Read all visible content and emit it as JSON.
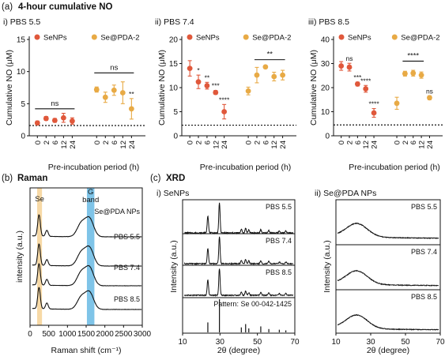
{
  "figure": {
    "panel_a_label": "(a)",
    "panel_a_title": "4-hour cumulative NO",
    "panel_b_label": "(b)",
    "panel_b_title": "Raman",
    "panel_c_label": "(c)",
    "panel_c_title": "XRD"
  },
  "colors": {
    "senps": "#e0583b",
    "sepda": "#e8aa45",
    "se_band": "#f7d9a6",
    "g_band": "#7fc4e8"
  },
  "chart_data": [
    {
      "type": "scatter",
      "title": "i) PBS 5.5",
      "ylabel": "Cumulative NO (μM)",
      "xlabel": "Pre-incubation period (h)",
      "ylim": [
        0,
        15
      ],
      "yticks": [
        0,
        5,
        10,
        15
      ],
      "baseline": 1.6,
      "x_ticklabels": [
        "0",
        "2",
        "6",
        "12",
        "24"
      ],
      "legend": [
        "SeNPs",
        "Se@PDA-2"
      ],
      "series": [
        {
          "name": "SeNPs",
          "values": [
            2.0,
            2.7,
            2.4,
            2.8,
            2.3
          ],
          "errors": [
            0.3,
            0.3,
            0.3,
            0.7,
            0.5
          ],
          "stars": [
            "",
            "",
            "",
            "",
            ""
          ]
        },
        {
          "name": "Se@PDA-2",
          "values": [
            7.2,
            6.0,
            7.1,
            6.7,
            4.2
          ],
          "errors": [
            0.4,
            0.8,
            0.8,
            1.7,
            1.6
          ],
          "stars": [
            "",
            "",
            "",
            "",
            "**"
          ]
        }
      ],
      "brackets": [
        {
          "series": 0,
          "from": 0,
          "to": 4,
          "y": 4.2,
          "label": "ns"
        },
        {
          "series": 1,
          "from": 0,
          "to": 4,
          "y": 9.8,
          "label": "ns"
        }
      ]
    },
    {
      "type": "scatter",
      "title": "ii) PBS 7.4",
      "ylabel": "Cumulative NO (μM)",
      "xlabel": "Pre-incubation period (h)",
      "ylim": [
        0,
        20
      ],
      "yticks": [
        0,
        5,
        10,
        15,
        20
      ],
      "baseline": 2.2,
      "x_ticklabels": [
        "0",
        "2",
        "6",
        "12",
        "24"
      ],
      "legend": [
        "SeNPs",
        "Se@PDA-2"
      ],
      "series": [
        {
          "name": "SeNPs",
          "values": [
            14.0,
            11.2,
            10.4,
            9.0,
            5.0
          ],
          "errors": [
            1.6,
            1.4,
            0.7,
            0.4,
            1.5
          ],
          "stars": [
            "",
            "*",
            "**",
            "***",
            "****"
          ]
        },
        {
          "name": "Se@PDA-2",
          "values": [
            9.3,
            12.6,
            14.3,
            12.3,
            12.6
          ],
          "errors": [
            0.8,
            1.6,
            0.3,
            0.9,
            1.0
          ],
          "stars": [
            "",
            "",
            "",
            "",
            ""
          ]
        }
      ],
      "brackets": [
        {
          "series": 1,
          "from": 1,
          "to": 4,
          "y": 15.8,
          "label": "**"
        }
      ]
    },
    {
      "type": "scatter",
      "title": "iii) PBS 8.5",
      "ylabel": "Cumulative NO (μM)",
      "xlabel": "Pre-incubation period (h)",
      "ylim": [
        0,
        40
      ],
      "yticks": [
        0,
        10,
        20,
        30,
        40
      ],
      "baseline": 4.5,
      "x_ticklabels": [
        "0",
        "2",
        "6",
        "12",
        "24"
      ],
      "legend": [
        "SeNPs",
        "Se@PDA-2"
      ],
      "series": [
        {
          "name": "SeNPs",
          "values": [
            29.0,
            28.5,
            21.5,
            19.5,
            9.5
          ],
          "errors": [
            1.8,
            1.6,
            0.8,
            1.4,
            1.8
          ],
          "stars": [
            "",
            "ns",
            "***",
            "****",
            "****"
          ]
        },
        {
          "name": "Se@PDA-2",
          "values": [
            13.5,
            25.8,
            26.0,
            25.2,
            15.8
          ],
          "errors": [
            2.5,
            1.0,
            1.2,
            1.3,
            0.8
          ],
          "stars": [
            "",
            "",
            "",
            "",
            "ns"
          ]
        }
      ],
      "brackets": [
        {
          "series": 1,
          "from": 1,
          "to": 3,
          "y": 31.0,
          "label": "****"
        }
      ]
    },
    {
      "type": "line",
      "title": "Raman",
      "xlabel": "Raman shift (cm⁻¹)",
      "ylabel": "intensity (a.u.)",
      "xlim": [
        0,
        3000
      ],
      "xticks": [
        0,
        500,
        1000,
        1500,
        2000,
        2500,
        3000
      ],
      "bands": [
        {
          "label": "Se",
          "from": 190,
          "to": 320
        },
        {
          "label": "G band",
          "from": 1520,
          "to": 1720
        }
      ],
      "series": [
        {
          "name": "Se@PDA NPs",
          "peaks": [
            [
              240,
              0.9
            ],
            [
              450,
              0.25
            ],
            [
              1370,
              0.55
            ],
            [
              1590,
              0.75
            ]
          ]
        },
        {
          "name": "PBS 5.5",
          "peaks": [
            [
              240,
              0.9
            ],
            [
              450,
              0.25
            ],
            [
              1370,
              0.55
            ],
            [
              1590,
              0.75
            ]
          ]
        },
        {
          "name": "PBS 7.4",
          "peaks": [
            [
              240,
              0.9
            ],
            [
              450,
              0.25
            ],
            [
              1370,
              0.55
            ],
            [
              1590,
              0.75
            ]
          ]
        },
        {
          "name": "PBS 8.5",
          "peaks": [
            [
              240,
              0.9
            ],
            [
              450,
              0.25
            ],
            [
              1370,
              0.5
            ],
            [
              1590,
              0.7
            ]
          ]
        }
      ]
    },
    {
      "type": "line",
      "title": "i) SeNPs",
      "xlabel": "2θ (degree)",
      "ylabel": "Intensity (a.u.)",
      "xlim": [
        10,
        70
      ],
      "xticks": [
        10,
        30,
        50,
        70
      ],
      "series": [
        {
          "name": "PBS 5.5",
          "peaks": [
            [
              23.5,
              0.55
            ],
            [
              29.7,
              0.95
            ],
            [
              41.4,
              0.12
            ],
            [
              43.7,
              0.15
            ],
            [
              45.4,
              0.1
            ],
            [
              51.8,
              0.1
            ],
            [
              56.1,
              0.08
            ],
            [
              61.7,
              0.06
            ],
            [
              65.2,
              0.06
            ]
          ]
        },
        {
          "name": "PBS 7.4",
          "peaks": [
            [
              23.5,
              0.55
            ],
            [
              29.7,
              0.95
            ],
            [
              41.4,
              0.12
            ],
            [
              43.7,
              0.15
            ],
            [
              45.4,
              0.1
            ],
            [
              51.8,
              0.1
            ],
            [
              56.1,
              0.08
            ],
            [
              61.7,
              0.06
            ],
            [
              65.2,
              0.06
            ]
          ]
        },
        {
          "name": "PBS 8.5",
          "peaks": [
            [
              23.5,
              0.55
            ],
            [
              29.7,
              0.95
            ],
            [
              41.4,
              0.12
            ],
            [
              43.7,
              0.15
            ],
            [
              45.4,
              0.1
            ],
            [
              51.8,
              0.1
            ],
            [
              56.1,
              0.08
            ],
            [
              61.7,
              0.06
            ],
            [
              65.2,
              0.06
            ]
          ]
        }
      ],
      "reference": {
        "name": "Pattern: Se 00-042-1425",
        "sticks": [
          [
            23.5,
            0.3
          ],
          [
            29.7,
            1.0
          ],
          [
            41.4,
            0.15
          ],
          [
            43.7,
            0.25
          ],
          [
            45.4,
            0.12
          ],
          [
            51.8,
            0.18
          ],
          [
            56.1,
            0.1
          ],
          [
            61.7,
            0.08
          ],
          [
            65.2,
            0.06
          ]
        ]
      }
    },
    {
      "type": "line",
      "title": "ii) Se@PDA NPs",
      "xlabel": "2θ (degree)",
      "ylabel": "Intensity (a.u.)",
      "xlim": [
        10,
        70
      ],
      "xticks": [
        10,
        30,
        50,
        70
      ],
      "series": [
        {
          "name": "PBS 5.5",
          "broad_peak": [
            22,
            0.7
          ]
        },
        {
          "name": "PBS 7.4",
          "broad_peak": [
            22,
            0.7
          ]
        },
        {
          "name": "PBS 8.5",
          "broad_peak": [
            22,
            0.7
          ]
        }
      ]
    }
  ]
}
